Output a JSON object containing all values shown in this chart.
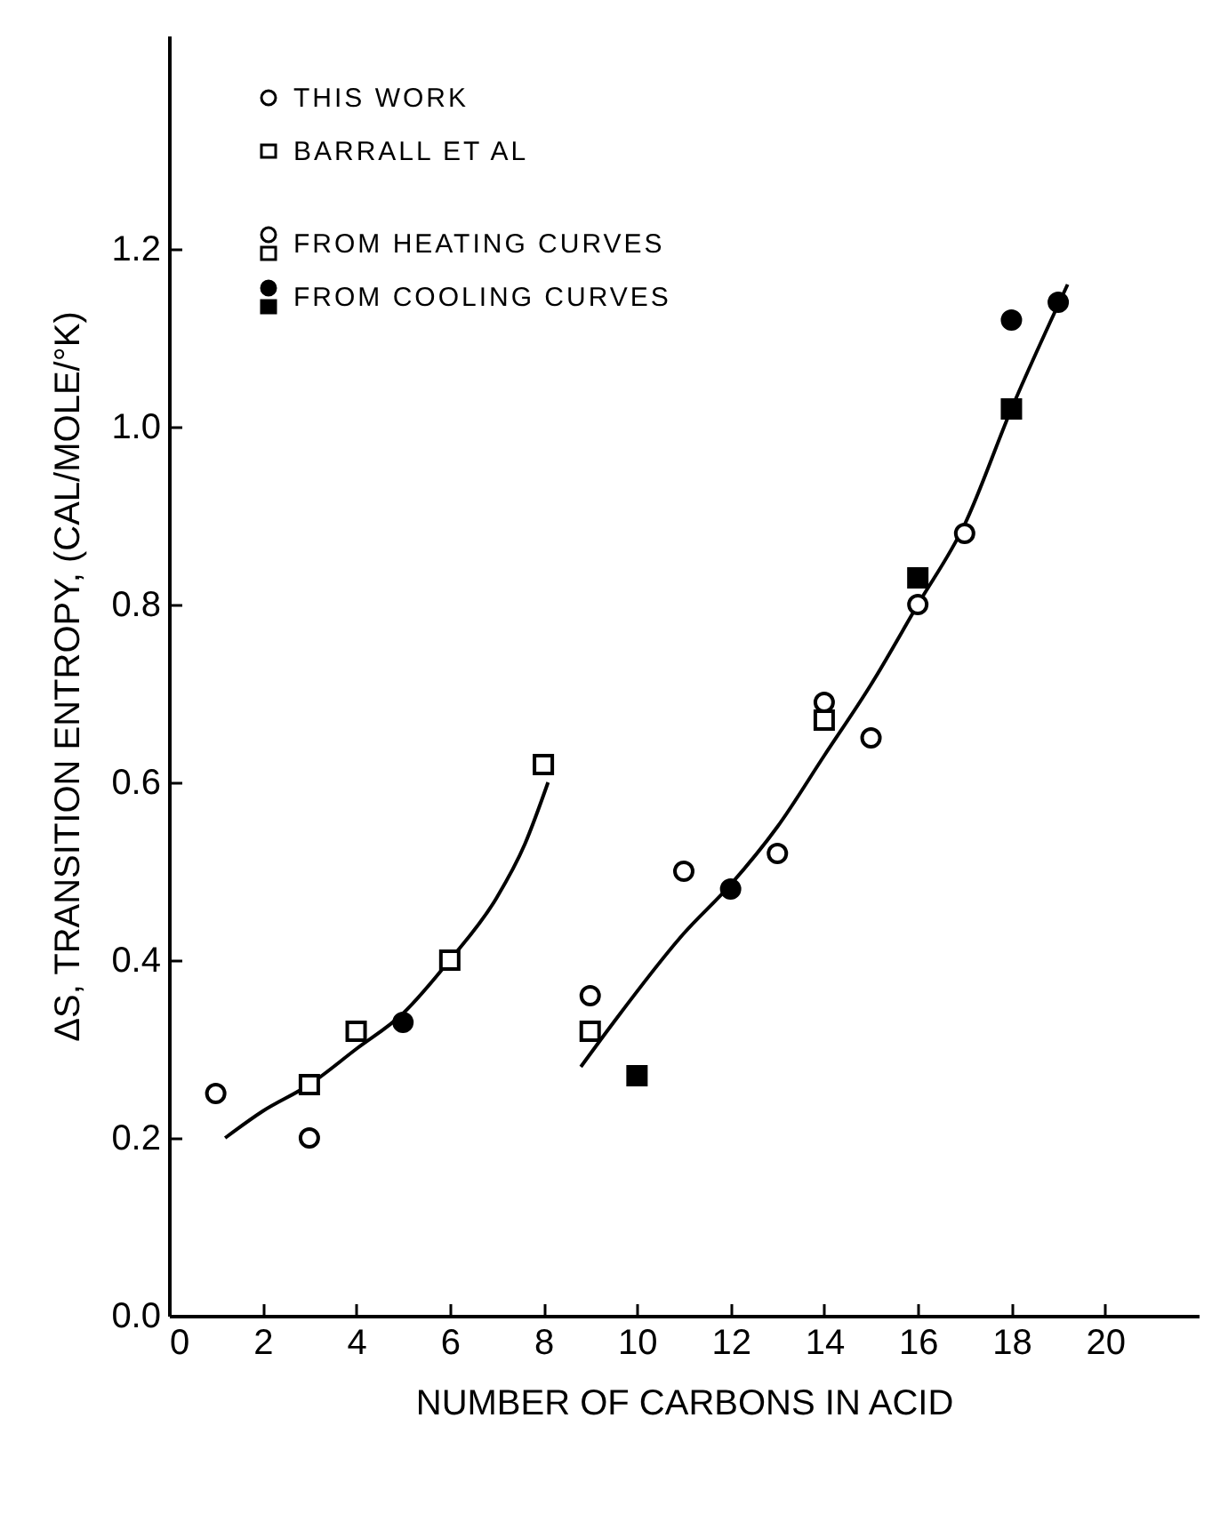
{
  "chart_data": {
    "type": "scatter",
    "xlabel": "NUMBER OF CARBONS IN ACID",
    "ylabel": "ΔS, TRANSITION ENTROPY, (CAL/MOLE/°K)",
    "xlim": [
      0,
      22
    ],
    "xticks": [
      0,
      2,
      4,
      6,
      8,
      10,
      12,
      14,
      16,
      18,
      20
    ],
    "ylim": [
      0,
      1.44
    ],
    "yticks": [
      {
        "value": 0,
        "label": "0.0"
      },
      {
        "value": 0.2,
        "label": "0.2"
      },
      {
        "value": 0.4,
        "label": "0.4"
      },
      {
        "value": 0.6,
        "label": "0.6"
      },
      {
        "value": 0.8,
        "label": "0.8"
      },
      {
        "value": 1.0,
        "label": "1.0"
      },
      {
        "value": 1.2,
        "label": "1.2"
      }
    ],
    "grid": false,
    "annotations": [
      "THIS WORK",
      "BARRALL ET AL",
      "FROM HEATING CURVES",
      "FROM COOLING CURVES"
    ],
    "series": [
      {
        "type": "line",
        "color": "#000000",
        "x": [
          1.2,
          2,
          3,
          4,
          5,
          6,
          7,
          7.6,
          8.1
        ],
        "values": [
          0.2,
          0.23,
          0.26,
          0.3,
          0.34,
          0.4,
          0.47,
          0.53,
          0.6
        ]
      },
      {
        "type": "line",
        "color": "#000000",
        "x": [
          8.8,
          9.5,
          11,
          12,
          13,
          14,
          15,
          16,
          17,
          18,
          19.2
        ],
        "values": [
          0.28,
          0.33,
          0.43,
          0.485,
          0.55,
          0.63,
          0.71,
          0.8,
          0.89,
          1.02,
          1.16
        ]
      },
      {
        "marker": "circle",
        "color": "#ffffff",
        "x": [
          1,
          3,
          9,
          11,
          13,
          14,
          15,
          16,
          17
        ],
        "values": [
          0.25,
          0.2,
          0.36,
          0.5,
          0.52,
          0.69,
          0.65,
          0.8,
          0.88
        ]
      },
      {
        "marker": "square",
        "color": "#ffffff",
        "x": [
          3,
          4,
          6,
          8,
          9,
          14
        ],
        "values": [
          0.26,
          0.32,
          0.4,
          0.62,
          0.32,
          0.67
        ]
      },
      {
        "marker": "circle",
        "color": "#000000",
        "x": [
          5,
          12,
          18,
          19
        ],
        "values": [
          0.33,
          0.48,
          1.12,
          1.14
        ]
      },
      {
        "marker": "square",
        "color": "#000000",
        "x": [
          10,
          16,
          18
        ],
        "values": [
          0.27,
          0.83,
          1.02
        ]
      }
    ]
  }
}
